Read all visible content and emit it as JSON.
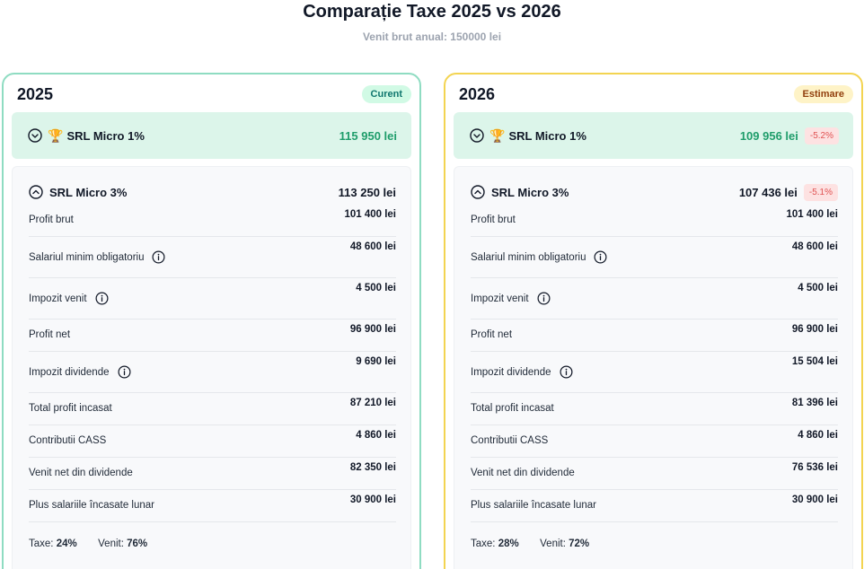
{
  "header": {
    "title": "Comparație Taxe 2025 vs 2026",
    "subtitle": "Venit brut anual: 150000 lei"
  },
  "colors": {
    "card_2025_border": "#8fdcc2",
    "card_2026_border": "#f3d451",
    "winner_bg": "#dcf5ea",
    "total_green": "#1f9d6b",
    "delta_red": "#e05353"
  },
  "icons": {
    "collapse": "chevron-down-circle-icon",
    "expand": "chevron-up-circle-icon",
    "winner": "trophy-icon",
    "info": "info-circle-icon"
  },
  "years": [
    {
      "year": "2025",
      "badge": "Curent",
      "winner": {
        "name": "SRL Micro 1%",
        "total": "115 950 lei",
        "delta": ""
      },
      "detail": {
        "name": "SRL Micro 3%",
        "total": "113 250 lei",
        "delta": "",
        "rows": [
          {
            "label": "Profit brut",
            "value": "101 400 lei"
          },
          {
            "label": "Salariul minim obligatoriu",
            "value": "48 600 lei"
          },
          {
            "label": "Impozit venit",
            "value": "4 500 lei"
          },
          {
            "label": "Profit net",
            "value": "96 900 lei"
          },
          {
            "label": "Impozit dividende",
            "value": "9 690 lei"
          },
          {
            "label": "Total profit incasat",
            "value": "87 210 lei"
          },
          {
            "label": "Contributii CASS",
            "value": "4 860 lei"
          },
          {
            "label": "Venit net din dividende",
            "value": "82 350 lei"
          },
          {
            "label": "Plus salariile încasate lunar",
            "value": "30 900 lei"
          }
        ],
        "summary": {
          "taxes_label": "Taxe:",
          "taxes_value": "24%",
          "income_label": "Venit:",
          "income_value": "76%"
        }
      }
    },
    {
      "year": "2026",
      "badge": "Estimare",
      "winner": {
        "name": "SRL Micro 1%",
        "total": "109 956 lei",
        "delta": "-5.2%"
      },
      "detail": {
        "name": "SRL Micro 3%",
        "total": "107 436 lei",
        "delta": "-5.1%",
        "rows": [
          {
            "label": "Profit brut",
            "value": "101 400 lei"
          },
          {
            "label": "Salariul minim obligatoriu",
            "value": "48 600 lei"
          },
          {
            "label": "Impozit venit",
            "value": "4 500 lei"
          },
          {
            "label": "Profit net",
            "value": "96 900 lei"
          },
          {
            "label": "Impozit dividende",
            "value": "15 504 lei"
          },
          {
            "label": "Total profit incasat",
            "value": "81 396 lei"
          },
          {
            "label": "Contributii CASS",
            "value": "4 860 lei"
          },
          {
            "label": "Venit net din dividende",
            "value": "76 536 lei"
          },
          {
            "label": "Plus salariile încasate lunar",
            "value": "30 900 lei"
          }
        ],
        "summary": {
          "taxes_label": "Taxe:",
          "taxes_value": "28%",
          "income_label": "Venit:",
          "income_value": "72%"
        }
      }
    }
  ]
}
